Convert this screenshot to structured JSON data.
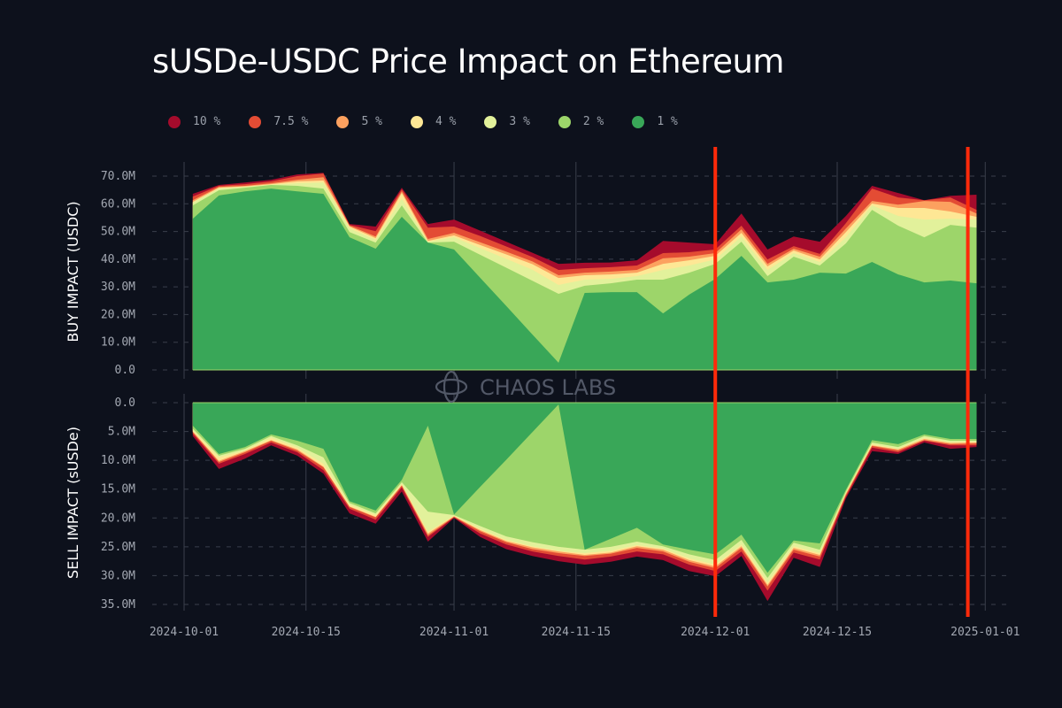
{
  "title": "sUSDe-USDC Price Impact on Ethereum",
  "watermark": "CHAOS LABS",
  "colors": {
    "background": "#0d111c",
    "marker_line": "#ff2a0a",
    "layers": [
      "#39a758",
      "#9dd56a",
      "#e2f19b",
      "#fee795",
      "#fca15f",
      "#e34c34",
      "#a50b2c"
    ]
  },
  "legend": [
    {
      "label": "10 %",
      "color": "#a50b2c"
    },
    {
      "label": "7.5 %",
      "color": "#e34c34"
    },
    {
      "label": "5 %",
      "color": "#fca15f"
    },
    {
      "label": "4 %",
      "color": "#fee795"
    },
    {
      "label": "3 %",
      "color": "#e2f19b"
    },
    {
      "label": "2 %",
      "color": "#9dd56a"
    },
    {
      "label": "1 %",
      "color": "#39a758"
    }
  ],
  "chart_data": [
    {
      "type": "area",
      "stacked": true,
      "title": "sUSDe-USDC Price Impact on Ethereum",
      "ylabel": "BUY IMPACT (USDC)",
      "ylim": [
        0,
        72
      ],
      "yunit": "M",
      "yticks": [
        "0.0",
        "10.0M",
        "20.0M",
        "30.0M",
        "40.0M",
        "50.0M",
        "60.0M",
        "70.0M"
      ],
      "grid": true,
      "legend_position": "top",
      "x": [
        "2024-10-02",
        "2024-10-05",
        "2024-10-08",
        "2024-10-11",
        "2024-10-14",
        "2024-10-17",
        "2024-10-20",
        "2024-10-23",
        "2024-10-26",
        "2024-10-29",
        "2024-11-01",
        "2024-11-04",
        "2024-11-07",
        "2024-11-10",
        "2024-11-13",
        "2024-11-16",
        "2024-11-19",
        "2024-11-22",
        "2024-11-25",
        "2024-11-28",
        "2024-12-01",
        "2024-12-04",
        "2024-12-07",
        "2024-12-10",
        "2024-12-13",
        "2024-12-16",
        "2024-12-19",
        "2024-12-22",
        "2024-12-25",
        "2024-12-28",
        "2024-12-31"
      ],
      "series_cumulative": [
        {
          "name": "1 %",
          "values": [
            54.6,
            63.0,
            64.5,
            65.5,
            64.5,
            63.6,
            47.9,
            43.8,
            55.3,
            46.0,
            43.5,
            33.3,
            23.1,
            12.8,
            2.6,
            27.8,
            28.1,
            28.1,
            20.4,
            27.2,
            32.9,
            41.2,
            31.6,
            32.6,
            35.1,
            34.8,
            39.0,
            34.5,
            31.6,
            32.3,
            31.3
          ]
        },
        {
          "name": "2 %",
          "values": [
            59.4,
            64.9,
            65.8,
            66.8,
            66.5,
            65.5,
            49.8,
            46.0,
            59.4,
            46.0,
            46.3,
            41.6,
            36.9,
            32.2,
            27.5,
            30.4,
            31.3,
            32.6,
            32.6,
            35.1,
            38.3,
            46.3,
            33.9,
            40.9,
            37.7,
            45.7,
            57.8,
            52.1,
            47.9,
            52.4,
            51.4
          ]
        },
        {
          "name": "3 %",
          "values": [
            60.4,
            65.5,
            66.1,
            66.9,
            67.4,
            67.7,
            51.1,
            47.0,
            61.9,
            46.3,
            47.9,
            44.0,
            40.1,
            36.2,
            30.7,
            32.6,
            32.9,
            33.9,
            36.1,
            37.7,
            39.9,
            48.2,
            36.1,
            42.2,
            39.0,
            47.9,
            59.4,
            55.6,
            54.3,
            54.6,
            54.3
          ]
        },
        {
          "name": "4 %",
          "values": [
            60.7,
            65.8,
            66.3,
            67.1,
            68.1,
            68.4,
            51.8,
            47.6,
            63.9,
            46.6,
            48.6,
            45.1,
            41.7,
            38.2,
            33.2,
            34.2,
            34.5,
            35.1,
            38.3,
            39.6,
            41.2,
            49.5,
            37.4,
            43.1,
            39.9,
            49.8,
            60.1,
            58.5,
            58.5,
            57.2,
            55.3
          ]
        },
        {
          "name": "5 %",
          "values": [
            61.3,
            66.1,
            66.5,
            67.4,
            68.7,
            69.6,
            52.1,
            48.2,
            64.5,
            47.3,
            49.5,
            46.1,
            42.7,
            39.2,
            34.2,
            35.1,
            35.5,
            36.1,
            40.3,
            40.9,
            42.2,
            50.8,
            38.3,
            43.8,
            40.9,
            51.1,
            61.0,
            59.7,
            61.0,
            60.7,
            56.5
          ]
        },
        {
          "name": "7.5 %",
          "values": [
            62.6,
            66.5,
            67.1,
            68.1,
            70.0,
            70.9,
            52.4,
            50.1,
            65.2,
            51.4,
            51.8,
            48.4,
            44.6,
            40.8,
            36.1,
            36.7,
            37.1,
            37.7,
            42.2,
            42.5,
            43.5,
            52.1,
            39.9,
            44.7,
            41.9,
            53.0,
            65.5,
            62.3,
            61.3,
            62.3,
            57.8
          ]
        },
        {
          "name": "10 %",
          "values": [
            63.6,
            66.8,
            67.7,
            68.7,
            70.6,
            71.2,
            52.7,
            51.8,
            65.8,
            52.7,
            54.3,
            50.3,
            46.3,
            42.3,
            38.3,
            38.7,
            38.8,
            39.6,
            46.6,
            46.0,
            45.4,
            56.5,
            43.5,
            48.2,
            46.3,
            55.6,
            66.5,
            63.9,
            61.3,
            62.9,
            63.3
          ]
        }
      ]
    },
    {
      "type": "area",
      "stacked": true,
      "ylabel": "SELL IMPACT (sUSDe)",
      "ylim": [
        0,
        36
      ],
      "yunit": "M",
      "inverted": true,
      "yticks": [
        "0.0",
        "5.0M",
        "10.0M",
        "15.0M",
        "20.0M",
        "25.0M",
        "30.0M",
        "35.0M"
      ],
      "grid": true,
      "x": [
        "2024-10-02",
        "2024-10-05",
        "2024-10-08",
        "2024-10-11",
        "2024-10-14",
        "2024-10-17",
        "2024-10-20",
        "2024-10-23",
        "2024-10-26",
        "2024-10-29",
        "2024-11-01",
        "2024-11-04",
        "2024-11-07",
        "2024-11-10",
        "2024-11-13",
        "2024-11-16",
        "2024-11-19",
        "2024-11-22",
        "2024-11-25",
        "2024-11-28",
        "2024-12-01",
        "2024-12-04",
        "2024-12-07",
        "2024-12-10",
        "2024-12-13",
        "2024-12-16",
        "2024-12-19",
        "2024-12-22",
        "2024-12-25",
        "2024-12-28",
        "2024-12-31"
      ],
      "series_cumulative": [
        {
          "name": "1 %",
          "values": [
            4.0,
            8.9,
            7.7,
            5.5,
            6.6,
            8.0,
            17.1,
            18.7,
            13.4,
            4.0,
            19.4,
            14.6,
            9.9,
            5.1,
            0.3,
            25.5,
            23.6,
            21.7,
            24.6,
            25.5,
            26.3,
            22.9,
            29.5,
            23.9,
            24.4,
            15.1,
            6.5,
            7.2,
            5.5,
            6.3,
            6.3
          ]
        },
        {
          "name": "2 %",
          "values": [
            4.5,
            9.2,
            8.0,
            5.8,
            7.4,
            9.5,
            17.4,
            19.2,
            13.8,
            18.9,
            19.5,
            21.4,
            23.2,
            24.2,
            25.0,
            25.5,
            25.0,
            24.1,
            24.9,
            26.3,
            27.3,
            23.8,
            30.4,
            24.3,
            25.5,
            15.4,
            6.9,
            7.7,
            5.8,
            6.6,
            6.6
          ]
        },
        {
          "name": "3 %",
          "values": [
            4.8,
            9.5,
            8.3,
            6.1,
            7.8,
            10.6,
            17.7,
            19.5,
            14.1,
            22.4,
            19.6,
            21.9,
            23.8,
            24.9,
            25.7,
            26.1,
            25.7,
            24.7,
            25.3,
            27.0,
            28.1,
            24.6,
            31.2,
            24.9,
            26.1,
            15.7,
            7.2,
            8.0,
            6.1,
            6.9,
            6.8
          ]
        },
        {
          "name": "4 %",
          "values": [
            5.0,
            10.1,
            8.4,
            6.5,
            8.1,
            11.1,
            18.0,
            19.8,
            14.3,
            22.7,
            19.7,
            22.1,
            24.0,
            25.1,
            25.8,
            26.4,
            26.0,
            24.9,
            25.5,
            27.3,
            28.4,
            24.9,
            31.6,
            25.2,
            26.4,
            15.8,
            7.4,
            8.1,
            6.3,
            7.0,
            6.9
          ]
        },
        {
          "name": "5 %",
          "values": [
            5.1,
            10.3,
            8.6,
            6.6,
            8.3,
            11.2,
            18.1,
            19.9,
            14.4,
            23.0,
            19.8,
            22.3,
            24.2,
            25.4,
            26.1,
            26.6,
            26.2,
            25.2,
            25.8,
            27.6,
            28.7,
            25.2,
            31.9,
            25.5,
            26.7,
            16.0,
            7.5,
            8.3,
            6.5,
            7.2,
            7.1
          ]
        },
        {
          "name": "7.5 %",
          "values": [
            5.4,
            10.6,
            8.9,
            6.9,
            8.6,
            11.7,
            18.4,
            20.3,
            14.7,
            23.3,
            19.9,
            22.7,
            24.6,
            25.8,
            26.6,
            27.2,
            26.7,
            25.8,
            26.3,
            28.1,
            29.2,
            25.8,
            32.6,
            26.0,
            27.2,
            16.3,
            7.8,
            8.6,
            6.6,
            7.4,
            7.4
          ]
        },
        {
          "name": "10 %",
          "values": [
            5.8,
            11.5,
            9.7,
            7.4,
            9.2,
            12.3,
            19.2,
            21.0,
            15.4,
            24.1,
            20.0,
            23.3,
            25.4,
            26.6,
            27.5,
            28.1,
            27.6,
            26.7,
            27.3,
            29.2,
            30.1,
            26.6,
            34.4,
            26.9,
            28.5,
            16.6,
            8.4,
            8.9,
            6.9,
            8.0,
            7.7
          ]
        }
      ]
    }
  ],
  "x_axis": {
    "ticks": [
      {
        "label": "2024-10-01",
        "date": "2024-10-01"
      },
      {
        "label": "2024-10-15",
        "date": "2024-10-15"
      },
      {
        "label": "2024-11-01",
        "date": "2024-11-01"
      },
      {
        "label": "2024-11-15",
        "date": "2024-11-15"
      },
      {
        "label": "2024-12-01",
        "date": "2024-12-01"
      },
      {
        "label": "2024-12-15",
        "date": "2024-12-15"
      },
      {
        "label": "2025-01-01",
        "date": "2025-01-01"
      }
    ]
  },
  "markers": [
    "2024-12-01",
    "2024-12-30"
  ]
}
